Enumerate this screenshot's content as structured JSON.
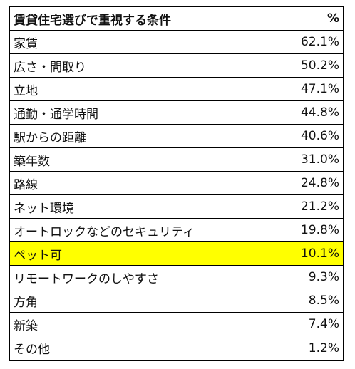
{
  "table": {
    "header": {
      "label": "賃貸住宅選びで重視する条件",
      "value": "%"
    },
    "rows": [
      {
        "label": "家賃",
        "value": "62.1%",
        "highlighted": false
      },
      {
        "label": "広さ・間取り",
        "value": "50.2%",
        "highlighted": false
      },
      {
        "label": "立地",
        "value": "47.1%",
        "highlighted": false
      },
      {
        "label": "通勤・通学時間",
        "value": "44.8%",
        "highlighted": false
      },
      {
        "label": "駅からの距離",
        "value": "40.6%",
        "highlighted": false
      },
      {
        "label": "築年数",
        "value": "31.0%",
        "highlighted": false
      },
      {
        "label": "路線",
        "value": "24.8%",
        "highlighted": false
      },
      {
        "label": "ネット環境",
        "value": "21.2%",
        "highlighted": false
      },
      {
        "label": "オートロックなどのセキュリティ",
        "value": "19.8%",
        "highlighted": false
      },
      {
        "label": "ペット可",
        "value": "10.1%",
        "highlighted": true
      },
      {
        "label": "リモートワークのしやすさ",
        "value": "9.3%",
        "highlighted": false
      },
      {
        "label": "方角",
        "value": "8.5%",
        "highlighted": false
      },
      {
        "label": "新築",
        "value": "7.4%",
        "highlighted": false
      },
      {
        "label": "その他",
        "value": "1.2%",
        "highlighted": false
      }
    ],
    "highlight_color": "#ffff00"
  }
}
